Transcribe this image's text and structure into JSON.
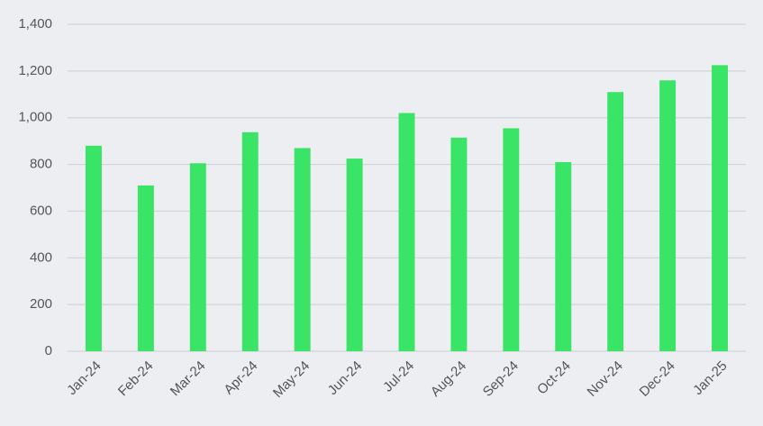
{
  "chart_data": {
    "type": "bar",
    "categories": [
      "Jan-24",
      "Feb-24",
      "Mar-24",
      "Apr-24",
      "May-24",
      "Jun-24",
      "Jul-24",
      "Aug-24",
      "Sep-24",
      "Oct-24",
      "Nov-24",
      "Dec-24",
      "Jan-25"
    ],
    "values": [
      880,
      710,
      805,
      938,
      870,
      825,
      1020,
      915,
      955,
      810,
      1110,
      1160,
      1225
    ],
    "color": "#3ae466",
    "ylim": [
      0,
      1400
    ],
    "yticks": [
      0,
      200,
      400,
      600,
      800,
      {
        "value": 1000,
        "label": "1,000"
      },
      {
        "value": 1200,
        "label": "1,200"
      },
      {
        "value": 1400,
        "label": "1,400"
      }
    ],
    "grid": true
  }
}
